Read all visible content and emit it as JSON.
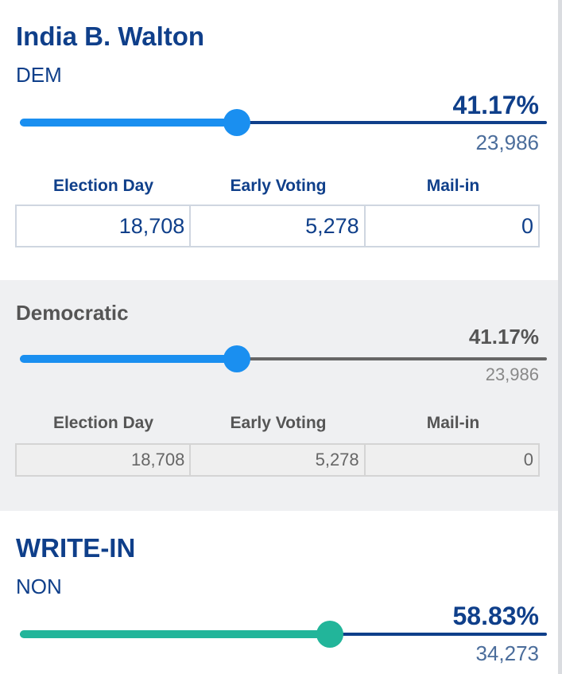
{
  "colors": {
    "navy": "#0f3f8a",
    "blue_fill": "#1a8ff0",
    "teal_fill": "#22b59a",
    "gray_text": "#555555"
  },
  "table_headers": [
    "Election Day",
    "Early Voting",
    "Mail-in"
  ],
  "candidate_1": {
    "name": "India B. Walton",
    "party": "DEM",
    "percent": "41.17%",
    "percent_value": 41.17,
    "votes": "23,986",
    "election_day": "18,708",
    "early_voting": "5,278",
    "mail_in": "0"
  },
  "party_row": {
    "name": "Democratic",
    "percent": "41.17%",
    "percent_value": 41.17,
    "votes": "23,986",
    "election_day": "18,708",
    "early_voting": "5,278",
    "mail_in": "0"
  },
  "candidate_2": {
    "name": "WRITE-IN",
    "party": "NON",
    "percent": "58.83%",
    "percent_value": 58.83,
    "votes": "34,273"
  }
}
